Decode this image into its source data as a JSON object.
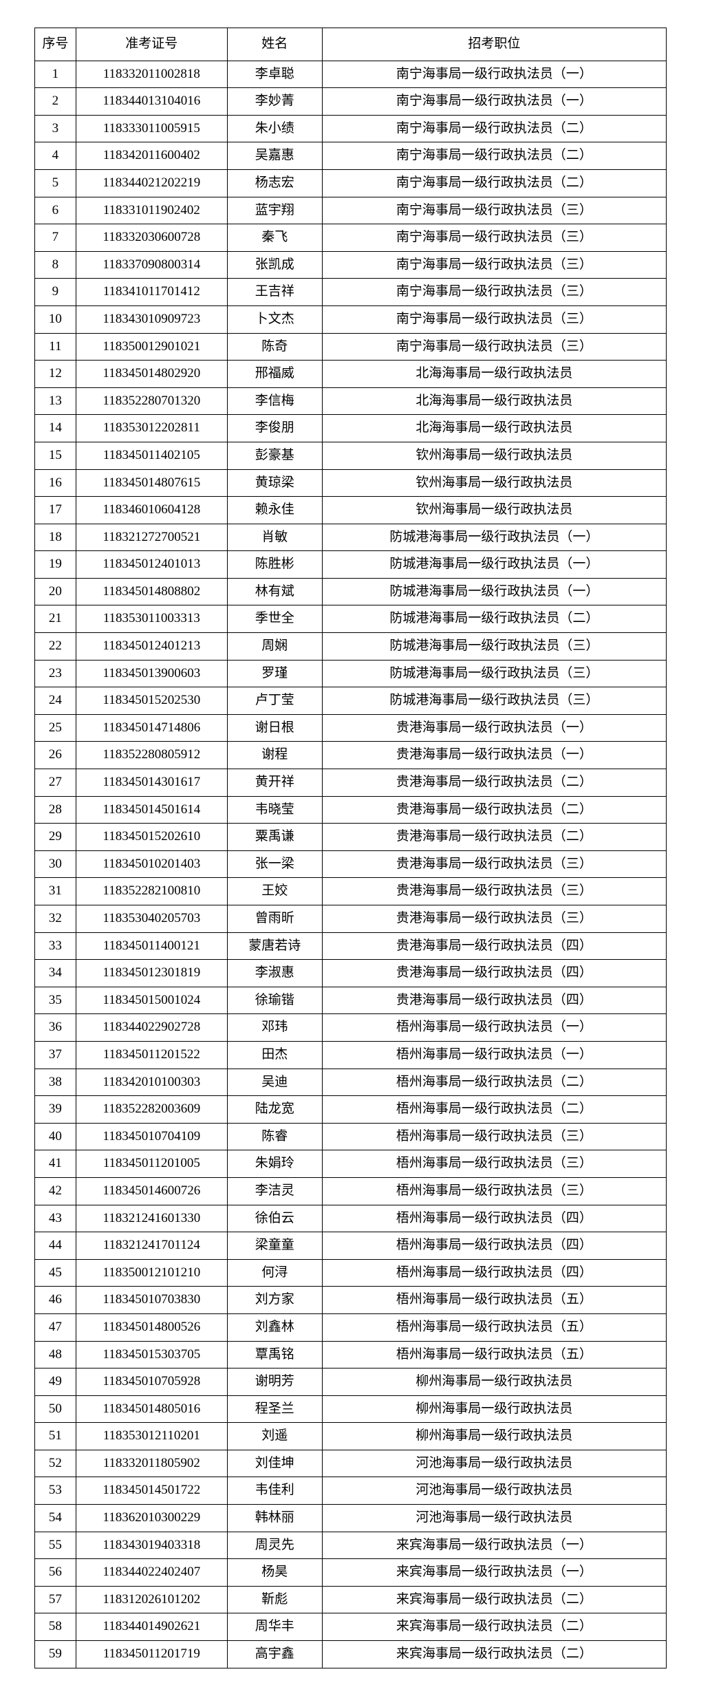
{
  "table": {
    "headers": {
      "seq": "序号",
      "examId": "准考证号",
      "name": "姓名",
      "position": "招考职位"
    },
    "rows": [
      {
        "seq": "1",
        "examId": "118332011002818",
        "name": "李卓聪",
        "position": "南宁海事局一级行政执法员（一）"
      },
      {
        "seq": "2",
        "examId": "118344013104016",
        "name": "李妙菁",
        "position": "南宁海事局一级行政执法员（一）"
      },
      {
        "seq": "3",
        "examId": "118333011005915",
        "name": "朱小绩",
        "position": "南宁海事局一级行政执法员（二）"
      },
      {
        "seq": "4",
        "examId": "118342011600402",
        "name": "吴嘉惠",
        "position": "南宁海事局一级行政执法员（二）"
      },
      {
        "seq": "5",
        "examId": "118344021202219",
        "name": "杨志宏",
        "position": "南宁海事局一级行政执法员（二）"
      },
      {
        "seq": "6",
        "examId": "118331011902402",
        "name": "蓝宇翔",
        "position": "南宁海事局一级行政执法员（三）"
      },
      {
        "seq": "7",
        "examId": "118332030600728",
        "name": "秦飞",
        "position": "南宁海事局一级行政执法员（三）"
      },
      {
        "seq": "8",
        "examId": "118337090800314",
        "name": "张凯成",
        "position": "南宁海事局一级行政执法员（三）"
      },
      {
        "seq": "9",
        "examId": "118341011701412",
        "name": "王吉祥",
        "position": "南宁海事局一级行政执法员（三）"
      },
      {
        "seq": "10",
        "examId": "118343010909723",
        "name": "卜文杰",
        "position": "南宁海事局一级行政执法员（三）"
      },
      {
        "seq": "11",
        "examId": "118350012901021",
        "name": "陈奇",
        "position": "南宁海事局一级行政执法员（三）"
      },
      {
        "seq": "12",
        "examId": "118345014802920",
        "name": "邢福威",
        "position": "北海海事局一级行政执法员"
      },
      {
        "seq": "13",
        "examId": "118352280701320",
        "name": "李信梅",
        "position": "北海海事局一级行政执法员"
      },
      {
        "seq": "14",
        "examId": "118353012202811",
        "name": "李俊朋",
        "position": "北海海事局一级行政执法员"
      },
      {
        "seq": "15",
        "examId": "118345011402105",
        "name": "彭豪基",
        "position": "钦州海事局一级行政执法员"
      },
      {
        "seq": "16",
        "examId": "118345014807615",
        "name": "黄琼梁",
        "position": "钦州海事局一级行政执法员"
      },
      {
        "seq": "17",
        "examId": "118346010604128",
        "name": "赖永佳",
        "position": "钦州海事局一级行政执法员"
      },
      {
        "seq": "18",
        "examId": "118321272700521",
        "name": "肖敏",
        "position": "防城港海事局一级行政执法员（一）"
      },
      {
        "seq": "19",
        "examId": "118345012401013",
        "name": "陈胜彬",
        "position": "防城港海事局一级行政执法员（一）"
      },
      {
        "seq": "20",
        "examId": "118345014808802",
        "name": "林有斌",
        "position": "防城港海事局一级行政执法员（一）"
      },
      {
        "seq": "21",
        "examId": "118353011003313",
        "name": "季世全",
        "position": "防城港海事局一级行政执法员（二）"
      },
      {
        "seq": "22",
        "examId": "118345012401213",
        "name": "周娴",
        "position": "防城港海事局一级行政执法员（三）"
      },
      {
        "seq": "23",
        "examId": "118345013900603",
        "name": "罗瑾",
        "position": "防城港海事局一级行政执法员（三）"
      },
      {
        "seq": "24",
        "examId": "118345015202530",
        "name": "卢丁莹",
        "position": "防城港海事局一级行政执法员（三）"
      },
      {
        "seq": "25",
        "examId": "118345014714806",
        "name": "谢日根",
        "position": "贵港海事局一级行政执法员（一）"
      },
      {
        "seq": "26",
        "examId": "118352280805912",
        "name": "谢程",
        "position": "贵港海事局一级行政执法员（一）"
      },
      {
        "seq": "27",
        "examId": "118345014301617",
        "name": "黄开祥",
        "position": "贵港海事局一级行政执法员（二）"
      },
      {
        "seq": "28",
        "examId": "118345014501614",
        "name": "韦晓莹",
        "position": "贵港海事局一级行政执法员（二）"
      },
      {
        "seq": "29",
        "examId": "118345015202610",
        "name": "粟禹谦",
        "position": "贵港海事局一级行政执法员（二）"
      },
      {
        "seq": "30",
        "examId": "118345010201403",
        "name": "张一梁",
        "position": "贵港海事局一级行政执法员（三）"
      },
      {
        "seq": "31",
        "examId": "118352282100810",
        "name": "王姣",
        "position": "贵港海事局一级行政执法员（三）"
      },
      {
        "seq": "32",
        "examId": "118353040205703",
        "name": "曾雨昕",
        "position": "贵港海事局一级行政执法员（三）"
      },
      {
        "seq": "33",
        "examId": "118345011400121",
        "name": "蒙唐若诗",
        "position": "贵港海事局一级行政执法员（四）"
      },
      {
        "seq": "34",
        "examId": "118345012301819",
        "name": "李淑惠",
        "position": "贵港海事局一级行政执法员（四）"
      },
      {
        "seq": "35",
        "examId": "118345015001024",
        "name": "徐瑜锴",
        "position": "贵港海事局一级行政执法员（四）"
      },
      {
        "seq": "36",
        "examId": "118344022902728",
        "name": "邓玮",
        "position": "梧州海事局一级行政执法员（一）"
      },
      {
        "seq": "37",
        "examId": "118345011201522",
        "name": "田杰",
        "position": "梧州海事局一级行政执法员（一）"
      },
      {
        "seq": "38",
        "examId": "118342010100303",
        "name": "吴迪",
        "position": "梧州海事局一级行政执法员（二）"
      },
      {
        "seq": "39",
        "examId": "118352282003609",
        "name": "陆龙宽",
        "position": "梧州海事局一级行政执法员（二）"
      },
      {
        "seq": "40",
        "examId": "118345010704109",
        "name": "陈睿",
        "position": "梧州海事局一级行政执法员（三）"
      },
      {
        "seq": "41",
        "examId": "118345011201005",
        "name": "朱娟玲",
        "position": "梧州海事局一级行政执法员（三）"
      },
      {
        "seq": "42",
        "examId": "118345014600726",
        "name": "李洁灵",
        "position": "梧州海事局一级行政执法员（三）"
      },
      {
        "seq": "43",
        "examId": "118321241601330",
        "name": "徐伯云",
        "position": "梧州海事局一级行政执法员（四）"
      },
      {
        "seq": "44",
        "examId": "118321241701124",
        "name": "梁童童",
        "position": "梧州海事局一级行政执法员（四）"
      },
      {
        "seq": "45",
        "examId": "118350012101210",
        "name": "何浔",
        "position": "梧州海事局一级行政执法员（四）"
      },
      {
        "seq": "46",
        "examId": "118345010703830",
        "name": "刘方家",
        "position": "梧州海事局一级行政执法员（五）"
      },
      {
        "seq": "47",
        "examId": "118345014800526",
        "name": "刘鑫林",
        "position": "梧州海事局一级行政执法员（五）"
      },
      {
        "seq": "48",
        "examId": "118345015303705",
        "name": "覃禹铭",
        "position": "梧州海事局一级行政执法员（五）"
      },
      {
        "seq": "49",
        "examId": "118345010705928",
        "name": "谢明芳",
        "position": "柳州海事局一级行政执法员"
      },
      {
        "seq": "50",
        "examId": "118345014805016",
        "name": "程圣兰",
        "position": "柳州海事局一级行政执法员"
      },
      {
        "seq": "51",
        "examId": "118353012110201",
        "name": "刘遥",
        "position": "柳州海事局一级行政执法员"
      },
      {
        "seq": "52",
        "examId": "118332011805902",
        "name": "刘佳坤",
        "position": "河池海事局一级行政执法员"
      },
      {
        "seq": "53",
        "examId": "118345014501722",
        "name": "韦佳利",
        "position": "河池海事局一级行政执法员"
      },
      {
        "seq": "54",
        "examId": "118362010300229",
        "name": "韩林丽",
        "position": "河池海事局一级行政执法员"
      },
      {
        "seq": "55",
        "examId": "118343019403318",
        "name": "周灵先",
        "position": "来宾海事局一级行政执法员（一）"
      },
      {
        "seq": "56",
        "examId": "118344022402407",
        "name": "杨昊",
        "position": "来宾海事局一级行政执法员（一）"
      },
      {
        "seq": "57",
        "examId": "118312026101202",
        "name": "靳彪",
        "position": "来宾海事局一级行政执法员（二）"
      },
      {
        "seq": "58",
        "examId": "118344014902621",
        "name": "周华丰",
        "position": "来宾海事局一级行政执法员（二）"
      },
      {
        "seq": "59",
        "examId": "118345011201719",
        "name": "高宇鑫",
        "position": "来宾海事局一级行政执法员（二）"
      }
    ]
  },
  "style": {
    "border_color": "#000000",
    "background_color": "#ffffff",
    "text_color": "#000000",
    "font_family": "SimSun",
    "font_size_pt": 14
  }
}
